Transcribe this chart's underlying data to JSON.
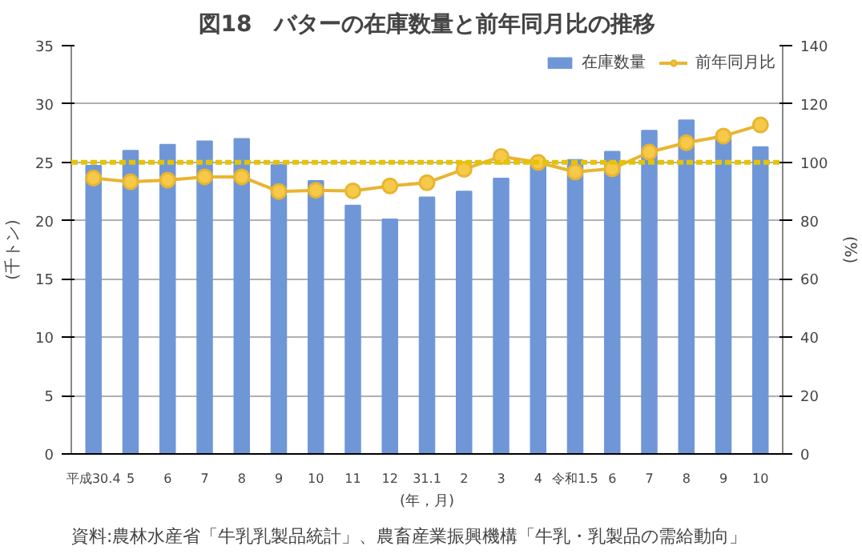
{
  "chart_data": {
    "type": "bar",
    "title": "図18　バターの在庫数量と前年同月比の推移",
    "categories": [
      "平成30.4",
      "5",
      "6",
      "7",
      "8",
      "9",
      "10",
      "11",
      "12",
      "31.1",
      "2",
      "3",
      "4",
      "令和1.5",
      "6",
      "7",
      "8",
      "9",
      "10"
    ],
    "xlabel": "(年，月)",
    "ylabel": "(千トン)",
    "y2label": "(%)",
    "series": [
      {
        "name": "在庫数量",
        "color": "#6f97d8",
        "values": [
          24.7,
          26.0,
          26.5,
          26.8,
          27.0,
          24.8,
          23.4,
          21.3,
          20.1,
          22.0,
          22.5,
          23.6,
          24.8,
          25.2,
          25.9,
          27.7,
          28.6,
          27.1,
          26.3
        ]
      },
      {
        "name": "前年同月比",
        "type": "line",
        "axis": "y2",
        "color": "#e8b530",
        "marker": "circle",
        "values": [
          94.6,
          93.3,
          93.9,
          95.0,
          95.0,
          90.0,
          90.4,
          90.2,
          91.9,
          93.0,
          97.6,
          102.0,
          100.0,
          96.7,
          97.8,
          103.5,
          106.7,
          109.0,
          112.8
        ]
      }
    ],
    "ylim": [
      0,
      35
    ],
    "yticks": [
      0,
      5,
      10,
      15,
      20,
      25,
      30,
      35
    ],
    "y2lim": [
      0,
      140
    ],
    "y2ticks": [
      0,
      20,
      40,
      60,
      80,
      100,
      120,
      140
    ],
    "ref_lines": [
      {
        "axis": "y2",
        "value": 100,
        "color": "#e6c300",
        "line_style": "dashed"
      }
    ],
    "grid": "y",
    "legend": "top right",
    "annotations": [
      "資料:農林水産省「牛乳乳製品統計」、農畜産業振興機構「牛乳・乳製品の需給動向」"
    ]
  }
}
